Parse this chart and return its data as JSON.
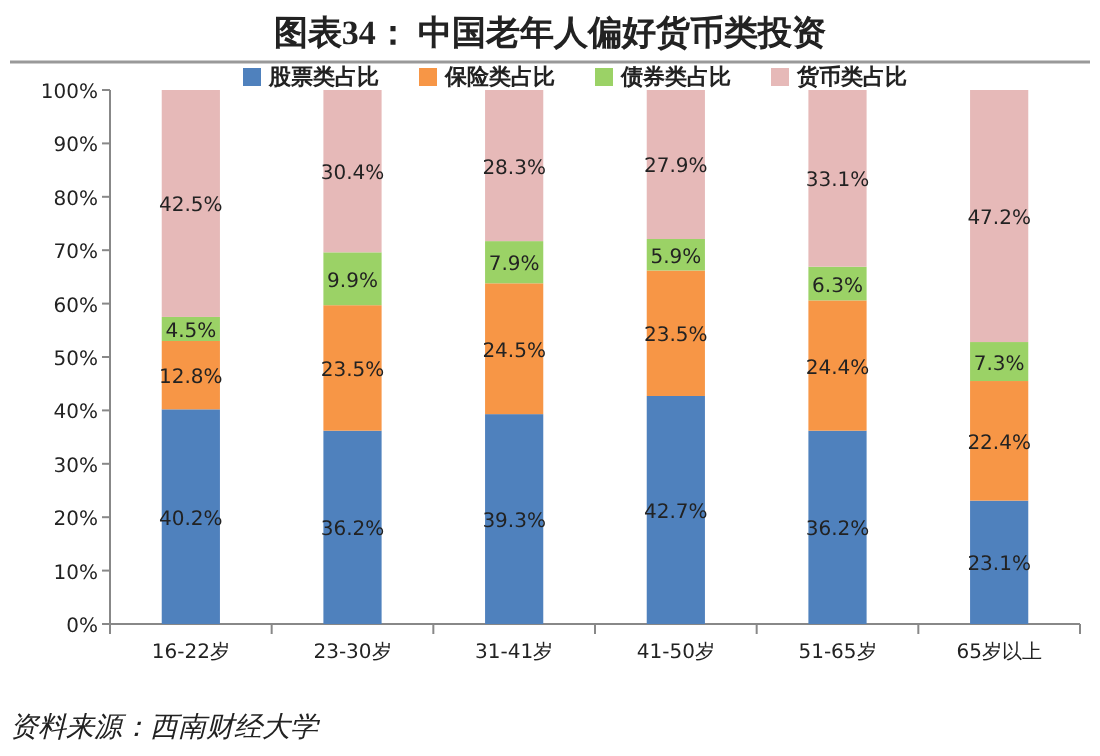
{
  "chart_data": {
    "type": "bar",
    "stacked": true,
    "title": "图表34：    中国老年人偏好货币类投资",
    "categories": [
      "16-22岁",
      "23-30岁",
      "31-41岁",
      "41-50岁",
      "51-65岁",
      "65岁以上"
    ],
    "series": [
      {
        "name": "股票类占比",
        "color": "#4f81bd",
        "values": [
          40.2,
          36.2,
          39.3,
          42.7,
          36.2,
          23.1
        ],
        "value_labels": [
          "40.2%",
          "36.2%",
          "39.3%",
          "42.7%",
          "36.2%",
          "23.1%"
        ]
      },
      {
        "name": "保险类占比",
        "color": "#f79646",
        "values": [
          12.8,
          23.5,
          24.5,
          23.5,
          24.4,
          22.4
        ],
        "value_labels": [
          "12.8%",
          "23.5%",
          "24.5%",
          "23.5%",
          "24.4%",
          "22.4%"
        ]
      },
      {
        "name": "债券类占比",
        "color": "#9bd266",
        "values": [
          4.5,
          9.9,
          7.9,
          5.9,
          6.3,
          7.3
        ],
        "value_labels": [
          "4.5%",
          "9.9%",
          "7.9%",
          "5.9%",
          "6.3%",
          "7.3%"
        ]
      },
      {
        "name": "货币类占比",
        "color": "#e6b9b8",
        "values": [
          42.5,
          30.4,
          28.3,
          27.9,
          33.1,
          47.2
        ],
        "value_labels": [
          "42.5%",
          "30.4%",
          "28.3%",
          "27.9%",
          "33.1%",
          "47.2%"
        ]
      }
    ],
    "ylim": [
      0,
      100
    ],
    "yticks": [
      {
        "value": 0,
        "label": "0%"
      },
      {
        "value": 10,
        "label": "10%"
      },
      {
        "value": 20,
        "label": "20%"
      },
      {
        "value": 30,
        "label": "30%"
      },
      {
        "value": 40,
        "label": "40%"
      },
      {
        "value": 50,
        "label": "50%"
      },
      {
        "value": 60,
        "label": "60%"
      },
      {
        "value": 70,
        "label": "70%"
      },
      {
        "value": 80,
        "label": "80%"
      },
      {
        "value": 90,
        "label": "90%"
      },
      {
        "value": 100,
        "label": "100%"
      }
    ],
    "legend": "top",
    "annotations": [
      "资料来源：西南财经大学"
    ]
  }
}
